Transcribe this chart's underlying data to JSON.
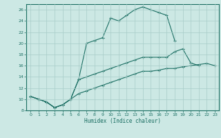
{
  "xlabel": "Humidex (Indice chaleur)",
  "bg_color": "#cce8e4",
  "line_color": "#1a6e62",
  "xlim": [
    -0.5,
    23.5
  ],
  "ylim": [
    8,
    27
  ],
  "xticks": [
    0,
    1,
    2,
    3,
    4,
    5,
    6,
    7,
    8,
    9,
    10,
    11,
    12,
    13,
    14,
    15,
    16,
    17,
    18,
    19,
    20,
    21,
    22,
    23
  ],
  "yticks": [
    8,
    10,
    12,
    14,
    16,
    18,
    20,
    22,
    24,
    26
  ],
  "curve1_x": [
    0,
    1,
    2,
    3,
    4,
    5,
    6,
    7,
    8,
    9,
    10,
    11,
    12,
    13,
    14,
    15,
    16,
    17,
    18
  ],
  "curve1_y": [
    10.5,
    10.0,
    9.5,
    8.5,
    9.0,
    10.0,
    13.5,
    20.0,
    20.5,
    21.0,
    24.5,
    24.0,
    25.0,
    26.0,
    26.5,
    26.0,
    25.5,
    25.0,
    20.5
  ],
  "curve2_x": [
    0,
    1,
    2,
    3,
    4,
    5,
    6,
    7,
    8,
    9,
    10,
    11,
    12,
    13,
    14,
    15,
    16,
    17,
    18,
    19,
    20,
    21
  ],
  "curve2_y": [
    10.5,
    10.0,
    9.5,
    8.5,
    9.0,
    10.0,
    13.5,
    14.0,
    14.5,
    15.0,
    15.5,
    16.0,
    16.5,
    17.0,
    17.5,
    17.5,
    17.5,
    17.5,
    18.5,
    19.0,
    16.5,
    16.0
  ],
  "curve3_x": [
    0,
    1,
    2,
    3,
    4,
    5,
    6,
    7,
    8,
    9,
    10,
    11,
    12,
    13,
    14,
    15,
    16,
    17,
    18,
    19,
    20,
    21,
    22,
    23
  ],
  "curve3_y": [
    10.5,
    10.0,
    9.5,
    8.5,
    9.0,
    10.0,
    11.0,
    11.5,
    12.0,
    12.5,
    13.0,
    13.5,
    14.0,
    14.5,
    15.0,
    15.0,
    15.2,
    15.5,
    15.5,
    15.8,
    16.0,
    16.2,
    16.4,
    16.0
  ]
}
